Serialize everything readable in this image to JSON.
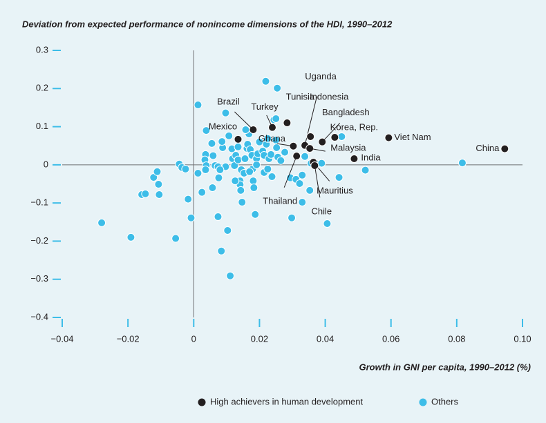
{
  "chart_data": {
    "type": "scatter",
    "title": "Deviation from expected performance of nonincome dimensions of the HDI, 1990–2012",
    "x_label": "Growth in GNI per capita, 1990–2012 (%)",
    "xlim": [
      -0.04,
      0.1
    ],
    "ylim": [
      -0.4,
      0.3
    ],
    "xticks": [
      {
        "value": -0.04,
        "label": "−0.04"
      },
      {
        "value": -0.02,
        "label": "−0.02"
      },
      0,
      0.02,
      0.04,
      0.06,
      0.08,
      {
        "value": 0.1,
        "label": "0.10"
      }
    ],
    "yticks": [
      0.3,
      0.2,
      0.1,
      0,
      {
        "value": -0.1,
        "label": "−0.1"
      },
      {
        "value": -0.2,
        "label": "−0.2"
      },
      {
        "value": -0.3,
        "label": "−0.3"
      },
      {
        "value": -0.4,
        "label": "−0.4"
      }
    ],
    "legend": "bottom-right",
    "series": [
      {
        "name": "High achievers in human development",
        "color": "#231f20",
        "labels": [
          "Mexico",
          "Brazil",
          "Turkey",
          "Tunisia",
          "Uganda",
          "Indonesia",
          "Bangladesh",
          "Korea, Rep.",
          "Ghana",
          "Thailand",
          "Malaysia",
          "Mauritius",
          "Chile",
          "India",
          "Viet Nam",
          "China"
        ],
        "x": [
          0.0135,
          0.0181,
          0.0239,
          0.0284,
          0.0338,
          0.0355,
          0.0391,
          0.0429,
          0.0303,
          0.0313,
          0.0353,
          0.0364,
          0.0368,
          0.0488,
          0.0593,
          0.0946
        ],
        "values": [
          0.067,
          0.092,
          0.098,
          0.11,
          0.051,
          0.074,
          0.06,
          0.072,
          0.049,
          0.023,
          0.043,
          0.007,
          -0.002,
          0.016,
          0.071,
          0.042
        ]
      },
      {
        "name": "Others",
        "color": "#3dbde8",
        "x": [
          -0.028,
          -0.0191,
          -0.0055,
          -0.0158,
          -0.0147,
          -0.0122,
          -0.0111,
          -0.0107,
          -0.0105,
          -0.0044,
          -0.0036,
          -0.0025,
          -0.0017,
          -0.0008,
          0.0013,
          0.0013,
          0.0025,
          0.0036,
          0.0034,
          0.0038,
          0.0036,
          0.0038,
          0.0057,
          0.0055,
          0.0059,
          0.0065,
          0.0074,
          0.0076,
          0.0074,
          0.0084,
          0.0097,
          0.0097,
          0.0103,
          0.0111,
          0.0088,
          0.0086,
          0.0107,
          0.0116,
          0.0118,
          0.0124,
          0.0128,
          0.0135,
          0.0135,
          0.0141,
          0.0141,
          0.0143,
          0.0145,
          0.0153,
          0.0156,
          0.0162,
          0.0164,
          0.0168,
          0.0172,
          0.0177,
          0.0179,
          0.0181,
          0.0183,
          0.0187,
          0.0191,
          0.0195,
          0.02,
          0.021,
          0.0214,
          0.0214,
          0.0219,
          0.0221,
          0.0225,
          0.0229,
          0.0235,
          0.0238,
          0.0244,
          0.025,
          0.0254,
          0.025,
          0.0252,
          0.0256,
          0.0265,
          0.0277,
          0.0294,
          0.0298,
          0.0311,
          0.0322,
          0.033,
          0.033,
          0.0338,
          0.0353,
          0.0357,
          0.0376,
          0.0389,
          0.0406,
          0.0442,
          0.045,
          0.0522,
          0.0817,
          0.0191,
          0.0225,
          0.0158,
          0.008,
          0.0147,
          0.017,
          0.0126
        ],
        "values": [
          -0.152,
          -0.19,
          -0.193,
          -0.078,
          -0.076,
          -0.033,
          -0.018,
          -0.051,
          -0.078,
          0.002,
          -0.007,
          -0.011,
          -0.09,
          -0.139,
          0.157,
          -0.022,
          -0.072,
          0.027,
          0.013,
          -0.002,
          -0.013,
          0.09,
          -0.06,
          0.056,
          0.024,
          -0.002,
          -0.005,
          -0.034,
          -0.136,
          -0.226,
          0.136,
          -0.005,
          -0.172,
          -0.291,
          0.045,
          0.061,
          0.076,
          0.042,
          0.016,
          -0.002,
          0.025,
          0.047,
          0.013,
          -0.042,
          -0.052,
          -0.067,
          -0.013,
          -0.022,
          0.016,
          0.043,
          0.054,
          0.081,
          0.04,
          0.025,
          -0.011,
          -0.042,
          -0.06,
          -0.13,
          0.016,
          0.029,
          0.06,
          0.036,
          -0.02,
          0.025,
          0.219,
          0.054,
          0.069,
          0.016,
          0.027,
          -0.031,
          0.118,
          0.121,
          0.201,
          0.065,
          0.045,
          0.02,
          0.011,
          0.033,
          -0.034,
          -0.139,
          -0.038,
          -0.049,
          -0.027,
          -0.098,
          0.022,
          -0.067,
          0.004,
          0.002,
          0.004,
          -0.154,
          -0.033,
          0.074,
          -0.014,
          0.005,
          0.0,
          -0.011,
          0.092,
          -0.013,
          -0.098,
          -0.018,
          -0.042
        ]
      }
    ]
  }
}
